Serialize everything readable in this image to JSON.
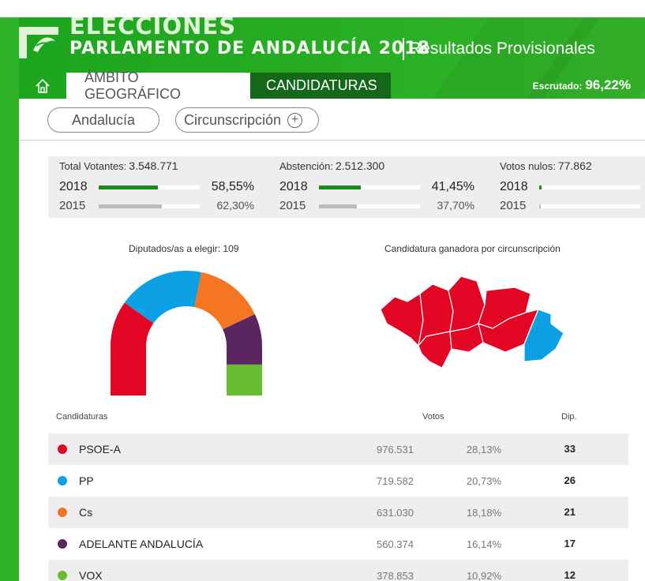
{
  "header": {
    "title_line1": "ELECCIONES",
    "title_line2": "PARLAMENTO DE ANDALUCÍA 2018",
    "subtitle": "Resultados Provisionales",
    "escrutado_label": "Escrutado:",
    "escrutado_value": "96,22%"
  },
  "nav": {
    "home_icon": "home-icon",
    "tab_geo": "ÁMBITO GEOGRÁFICO",
    "tab_candidaturas": "CANDIDATURAS"
  },
  "filters": {
    "andalucia": "Andalucía",
    "circunscripcion": "Circunscripción",
    "plus_icon": "plus-circle-icon"
  },
  "stats": [
    {
      "label": "Total Votantes:",
      "value": "3.548.771",
      "rows": [
        {
          "year": "2018",
          "pct": "58,55%",
          "fraction": 0.5855
        },
        {
          "year": "2015",
          "pct": "62,30%",
          "fraction": 0.623
        }
      ]
    },
    {
      "label": "Abstención:",
      "value": "2.512.300",
      "rows": [
        {
          "year": "2018",
          "pct": "41,45%",
          "fraction": 0.4145
        },
        {
          "year": "2015",
          "pct": "37,70%",
          "fraction": 0.377
        }
      ]
    },
    {
      "label": "Votos nulos:",
      "value": "77.862",
      "rows": [
        {
          "year": "2018",
          "pct": "",
          "fraction": 0.022
        },
        {
          "year": "2015",
          "pct": "",
          "fraction": 0.015
        }
      ]
    }
  ],
  "hemicycle": {
    "title": "Diputados/as a elegir: 109"
  },
  "map": {
    "title": "Candidatura ganadora por circunscripción",
    "provinces": [
      {
        "name": "Huelva",
        "winner": "PSOE-A"
      },
      {
        "name": "Sevilla",
        "winner": "PSOE-A"
      },
      {
        "name": "Córdoba",
        "winner": "PSOE-A"
      },
      {
        "name": "Jaén",
        "winner": "PSOE-A"
      },
      {
        "name": "Cádiz",
        "winner": "PSOE-A"
      },
      {
        "name": "Málaga",
        "winner": "PSOE-A"
      },
      {
        "name": "Granada",
        "winner": "PSOE-A"
      },
      {
        "name": "Almería",
        "winner": "PP"
      }
    ]
  },
  "table": {
    "col_candidaturas": "Candidaturas",
    "col_votos": "Votos",
    "col_dip": "Dip.",
    "rows": [
      {
        "name": "PSOE-A",
        "votes": "976.531",
        "pct": "28,13%",
        "dip": "33",
        "seats": 33,
        "color": "#e30524"
      },
      {
        "name": "PP",
        "votes": "719.582",
        "pct": "20,73%",
        "dip": "26",
        "seats": 26,
        "color": "#0b9fe3"
      },
      {
        "name": "Cs",
        "votes": "631.030",
        "pct": "18,18%",
        "dip": "21",
        "seats": 21,
        "color": "#f47622"
      },
      {
        "name": "ADELANTE ANDALUCÍA",
        "votes": "560.374",
        "pct": "16,14%",
        "dip": "17",
        "seats": 17,
        "color": "#5b2560"
      },
      {
        "name": "VOX",
        "votes": "378.853",
        "pct": "10,92%",
        "dip": "12",
        "seats": 12,
        "color": "#67bc31"
      }
    ]
  },
  "colors": {
    "brand_green": "#27ae24",
    "dark_green": "#15681a",
    "bar_green": "#1b8a1e"
  }
}
